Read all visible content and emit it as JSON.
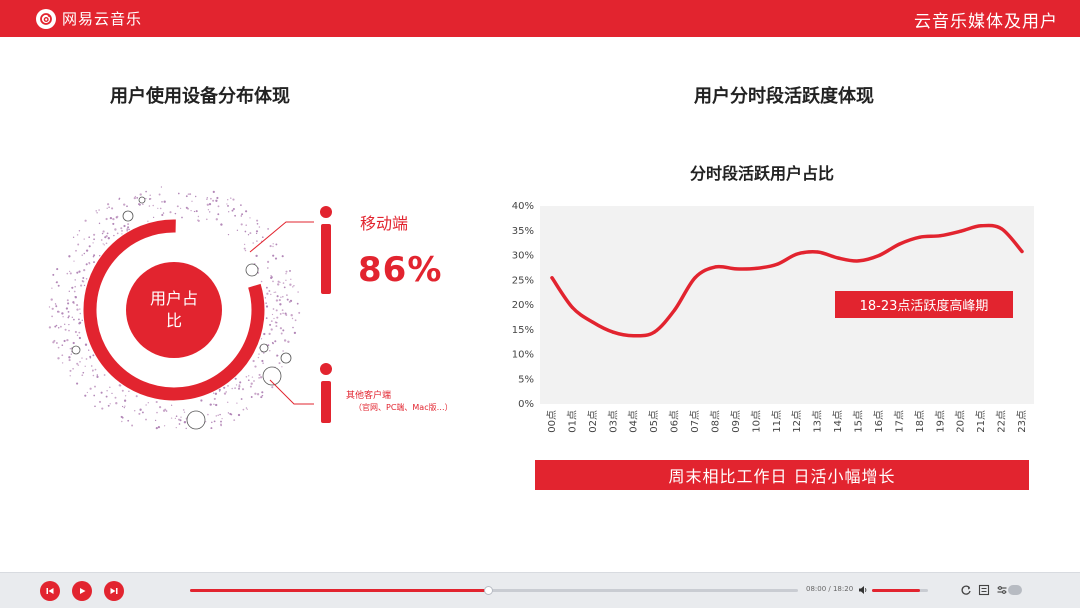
{
  "header": {
    "brand": "网易云音乐",
    "title": "云音乐媒体及用户"
  },
  "left_section": {
    "title": "用户使用设备分布体现",
    "center_label": "用户占比",
    "mobile": {
      "label": "移动端",
      "value": "86%",
      "share": 0.86
    },
    "other": {
      "label": "其他客户端",
      "detail": "（官网、PC端、Mac版…）"
    }
  },
  "right_section": {
    "title": "用户分时段活跃度体现",
    "peak_badge": "18-23点活跃度高峰期",
    "banner": "周末相比工作日 日活小幅增长"
  },
  "chart_data": {
    "type": "line",
    "title": "分时段活跃用户占比",
    "x": [
      "00点",
      "01点",
      "02点",
      "03点",
      "04点",
      "05点",
      "06点",
      "07点",
      "08点",
      "09点",
      "10点",
      "11点",
      "12点",
      "13点",
      "14点",
      "15点",
      "16点",
      "17点",
      "18点",
      "19点",
      "20点",
      "21点",
      "22点",
      "23点"
    ],
    "series": [
      {
        "values": [
          25.5,
          19.5,
          16.5,
          14.5,
          13.8,
          14.5,
          19.0,
          25.5,
          27.7,
          27.3,
          27.4,
          28.2,
          30.3,
          30.7,
          29.5,
          28.9,
          30.0,
          32.3,
          33.7,
          34.0,
          34.9,
          36.0,
          35.4,
          30.8
        ]
      }
    ],
    "y_ticks": [
      "0%",
      "5%",
      "10%",
      "15%",
      "20%",
      "25%",
      "30%",
      "35%",
      "40%"
    ],
    "ylim": [
      0,
      40
    ],
    "grid": false,
    "colors": {
      "line": "#e2242f",
      "plot_bg": "#f2f2f2"
    }
  },
  "player": {
    "time": "08:00 / 18:20",
    "progress": 0.49,
    "volume": 0.85
  },
  "colors": {
    "accent": "#e2242f"
  }
}
